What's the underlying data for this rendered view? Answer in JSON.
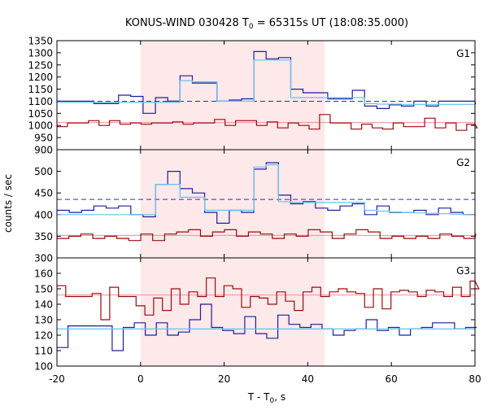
{
  "chart_data": {
    "type": "line",
    "title_main": "KONUS-WIND 030428 T",
    "title_sub": "0",
    "title_rest": " = 65315s UT (18:08:35.000)",
    "xlabel_main": "T - T",
    "xlabel_sub": "0",
    "xlabel_rest": ", s",
    "ylabel": "counts / sec",
    "xlim": [
      -20,
      80
    ],
    "x_ticks": [
      -20,
      0,
      20,
      40,
      60,
      80
    ],
    "shaded_interval": [
      0,
      44
    ],
    "colors": {
      "shade": "#fde8ea",
      "dark_red": "#9c0b0b",
      "blue": "#1e1e9c",
      "light_blue": "#63c3ea",
      "pink": "#f08ca0",
      "dashed": "#2d2db4"
    },
    "panels": [
      {
        "label": "G1",
        "ylim": [
          900,
          1350
        ],
        "y_ticks": [
          900,
          950,
          1000,
          1050,
          1100,
          1150,
          1200,
          1250,
          1300,
          1350
        ],
        "bin_width": 2.944,
        "x_start": -20,
        "series": [
          {
            "role": "blue",
            "values": [
              1100,
              1100,
              1100,
              1090,
              1090,
              1125,
              1120,
              1050,
              1115,
              1100,
              1205,
              1175,
              1175,
              1100,
              1105,
              1110,
              1305,
              1275,
              1280,
              1150,
              1135,
              1135,
              1110,
              1110,
              1145,
              1080,
              1070,
              1085,
              1080,
              1100,
              1080,
              1100,
              1100,
              1100,
              1090
            ]
          },
          {
            "role": "light_blue",
            "values": [
              1095,
              1095,
              1095,
              1095,
              1095,
              1095,
              1095,
              1095,
              1095,
              1095,
              1185,
              1180,
              1180,
              1100,
              1100,
              1100,
              1270,
              1270,
              1270,
              1115,
              1115,
              1115,
              1115,
              1115,
              1115,
              1090,
              1088,
              1088,
              1087,
              1087,
              1087,
              1087,
              1087,
              1087,
              1087
            ]
          },
          {
            "role": "dark_red",
            "values": [
              995,
              1010,
              1010,
              1020,
              1000,
              1020,
              1005,
              1010,
              1005,
              1010,
              1010,
              1015,
              1005,
              1010,
              1010,
              1025,
              1000,
              1020,
              1020,
              1000,
              1015,
              990,
              1010,
              1000,
              985,
              1045,
              1010,
              1010,
              985,
              1005,
              990,
              985,
              1010,
              995,
              995,
              1030,
              990,
              1010,
              980,
              1005,
              990
            ]
          }
        ],
        "mean_solid": 1012,
        "mean_dashed": 1100
      },
      {
        "label": "G2",
        "ylim": [
          300,
          550
        ],
        "y_ticks": [
          300,
          350,
          400,
          450,
          500
        ],
        "bin_width": 2.944,
        "x_start": -20,
        "series": [
          {
            "role": "blue",
            "values": [
              410,
              405,
              410,
              420,
              415,
              420,
              400,
              395,
              470,
              500,
              460,
              450,
              405,
              380,
              410,
              405,
              505,
              520,
              445,
              425,
              430,
              415,
              410,
              420,
              425,
              400,
              420,
              405,
              405,
              410,
              400,
              415,
              405,
              400,
              400
            ]
          },
          {
            "role": "light_blue",
            "values": [
              400,
              400,
              400,
              400,
              400,
              400,
              400,
              400,
              470,
              470,
              440,
              440,
              410,
              410,
              410,
              410,
              510,
              515,
              430,
              428,
              428,
              428,
              428,
              428,
              428,
              410,
              408,
              406,
              405,
              404,
              403,
              402,
              401,
              400,
              400
            ]
          },
          {
            "role": "dark_red",
            "values": [
              345,
              350,
              355,
              345,
              350,
              345,
              340,
              355,
              340,
              355,
              360,
              365,
              350,
              360,
              365,
              350,
              360,
              355,
              345,
              355,
              350,
              365,
              360,
              345,
              355,
              365,
              360,
              345,
              350,
              345,
              350,
              345,
              355,
              350,
              345,
              355
            ]
          }
        ],
        "mean_solid": 352,
        "mean_dashed": 435
      },
      {
        "label": "G3",
        "ylim": [
          100,
          170
        ],
        "y_ticks": [
          100,
          110,
          120,
          130,
          140,
          150,
          160
        ],
        "bin_width": 2.944,
        "x_start": -20,
        "series": [
          {
            "role": "dark_red",
            "values": [
              152,
              145,
              145,
              145,
              147,
              130,
              151,
              145,
              145,
              139,
              133,
              144,
              136,
              150,
              140,
              148,
              145,
              157,
              145,
              152,
              150,
              138,
              145,
              144,
              140,
              148,
              142,
              136,
              148,
              151,
              145,
              148,
              150,
              148,
              147,
              138,
              150,
              137,
              148,
              149,
              148,
              145,
              149,
              148,
              145,
              151,
              145,
              155,
              150
            ]
          },
          {
            "role": "blue",
            "values": [
              112,
              126,
              126,
              126,
              126,
              110,
              125,
              128,
              120,
              128,
              120,
              122,
              130,
              140,
              125,
              123,
              121,
              132,
              121,
              118,
              133,
              127,
              125,
              127,
              124,
              120,
              123,
              124,
              130,
              123,
              125,
              120,
              124,
              125,
              128,
              128,
              124,
              125,
              125
            ]
          },
          {
            "role": "light_blue",
            "values": [
              124,
              124,
              124,
              124,
              124,
              124,
              124,
              124,
              124,
              124,
              124,
              124,
              124,
              124,
              124,
              124,
              124,
              124,
              124,
              124,
              124,
              124,
              124,
              124,
              124,
              124,
              124,
              124,
              124,
              124,
              124,
              124,
              124,
              124
            ]
          }
        ],
        "mean_solid": 146
      }
    ]
  }
}
